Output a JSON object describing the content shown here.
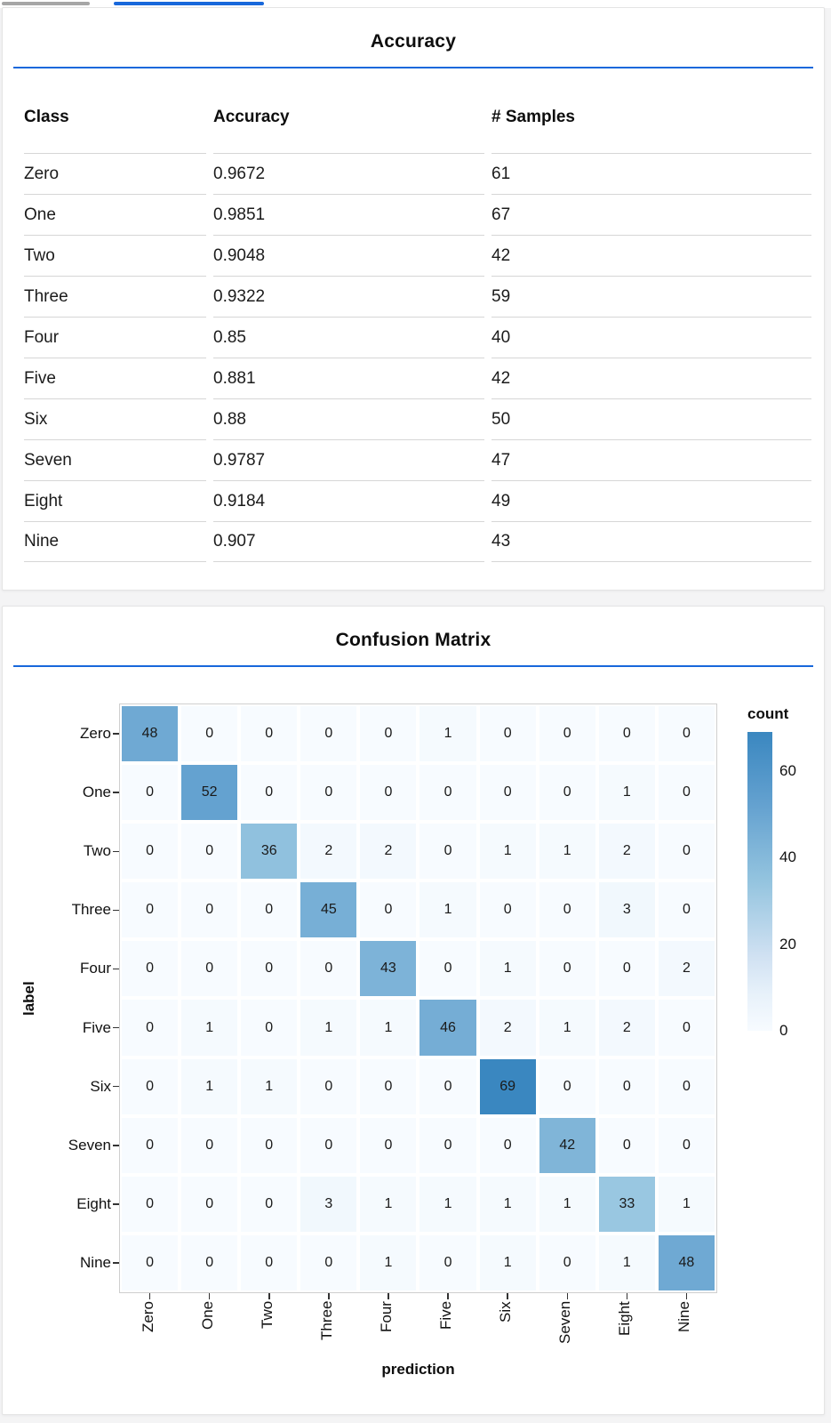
{
  "colors": {
    "accent_blue": "#1868db",
    "tab_inactive_gray": "#a6a6a6",
    "heatmap_low": "#f7fbff",
    "heatmap_high": "#3a87c0"
  },
  "chart_data": [
    {
      "type": "table",
      "title": "Accuracy",
      "columns": [
        "Class",
        "Accuracy",
        "# Samples"
      ],
      "rows": [
        [
          "Zero",
          "0.9672",
          "61"
        ],
        [
          "One",
          "0.9851",
          "67"
        ],
        [
          "Two",
          "0.9048",
          "42"
        ],
        [
          "Three",
          "0.9322",
          "59"
        ],
        [
          "Four",
          "0.85",
          "40"
        ],
        [
          "Five",
          "0.881",
          "42"
        ],
        [
          "Six",
          "0.88",
          "50"
        ],
        [
          "Seven",
          "0.9787",
          "47"
        ],
        [
          "Eight",
          "0.9184",
          "49"
        ],
        [
          "Nine",
          "0.907",
          "43"
        ]
      ]
    },
    {
      "type": "heatmap",
      "title": "Confusion Matrix",
      "xlabel": "prediction",
      "ylabel": "label",
      "x_categories": [
        "Zero",
        "One",
        "Two",
        "Three",
        "Four",
        "Five",
        "Six",
        "Seven",
        "Eight",
        "Nine"
      ],
      "y_categories": [
        "Zero",
        "One",
        "Two",
        "Three",
        "Four",
        "Five",
        "Six",
        "Seven",
        "Eight",
        "Nine"
      ],
      "matrix": [
        [
          48,
          0,
          0,
          0,
          0,
          1,
          0,
          0,
          0,
          0
        ],
        [
          0,
          52,
          0,
          0,
          0,
          0,
          0,
          0,
          1,
          0
        ],
        [
          0,
          0,
          36,
          2,
          2,
          0,
          1,
          1,
          2,
          0
        ],
        [
          0,
          0,
          0,
          45,
          0,
          1,
          0,
          0,
          3,
          0
        ],
        [
          0,
          0,
          0,
          0,
          43,
          0,
          1,
          0,
          0,
          2
        ],
        [
          0,
          1,
          0,
          1,
          1,
          46,
          2,
          1,
          2,
          0
        ],
        [
          0,
          1,
          1,
          0,
          0,
          0,
          69,
          0,
          0,
          0
        ],
        [
          0,
          0,
          0,
          0,
          0,
          0,
          0,
          42,
          0,
          0
        ],
        [
          0,
          0,
          0,
          3,
          1,
          1,
          1,
          1,
          33,
          1
        ],
        [
          0,
          0,
          0,
          0,
          1,
          0,
          1,
          0,
          1,
          48
        ]
      ],
      "legend": {
        "title": "count",
        "ticks": [
          0,
          20,
          40,
          60
        ],
        "domain_min": 0,
        "domain_max": 69,
        "position": "right"
      },
      "grid": false,
      "colormap": "blues"
    }
  ]
}
